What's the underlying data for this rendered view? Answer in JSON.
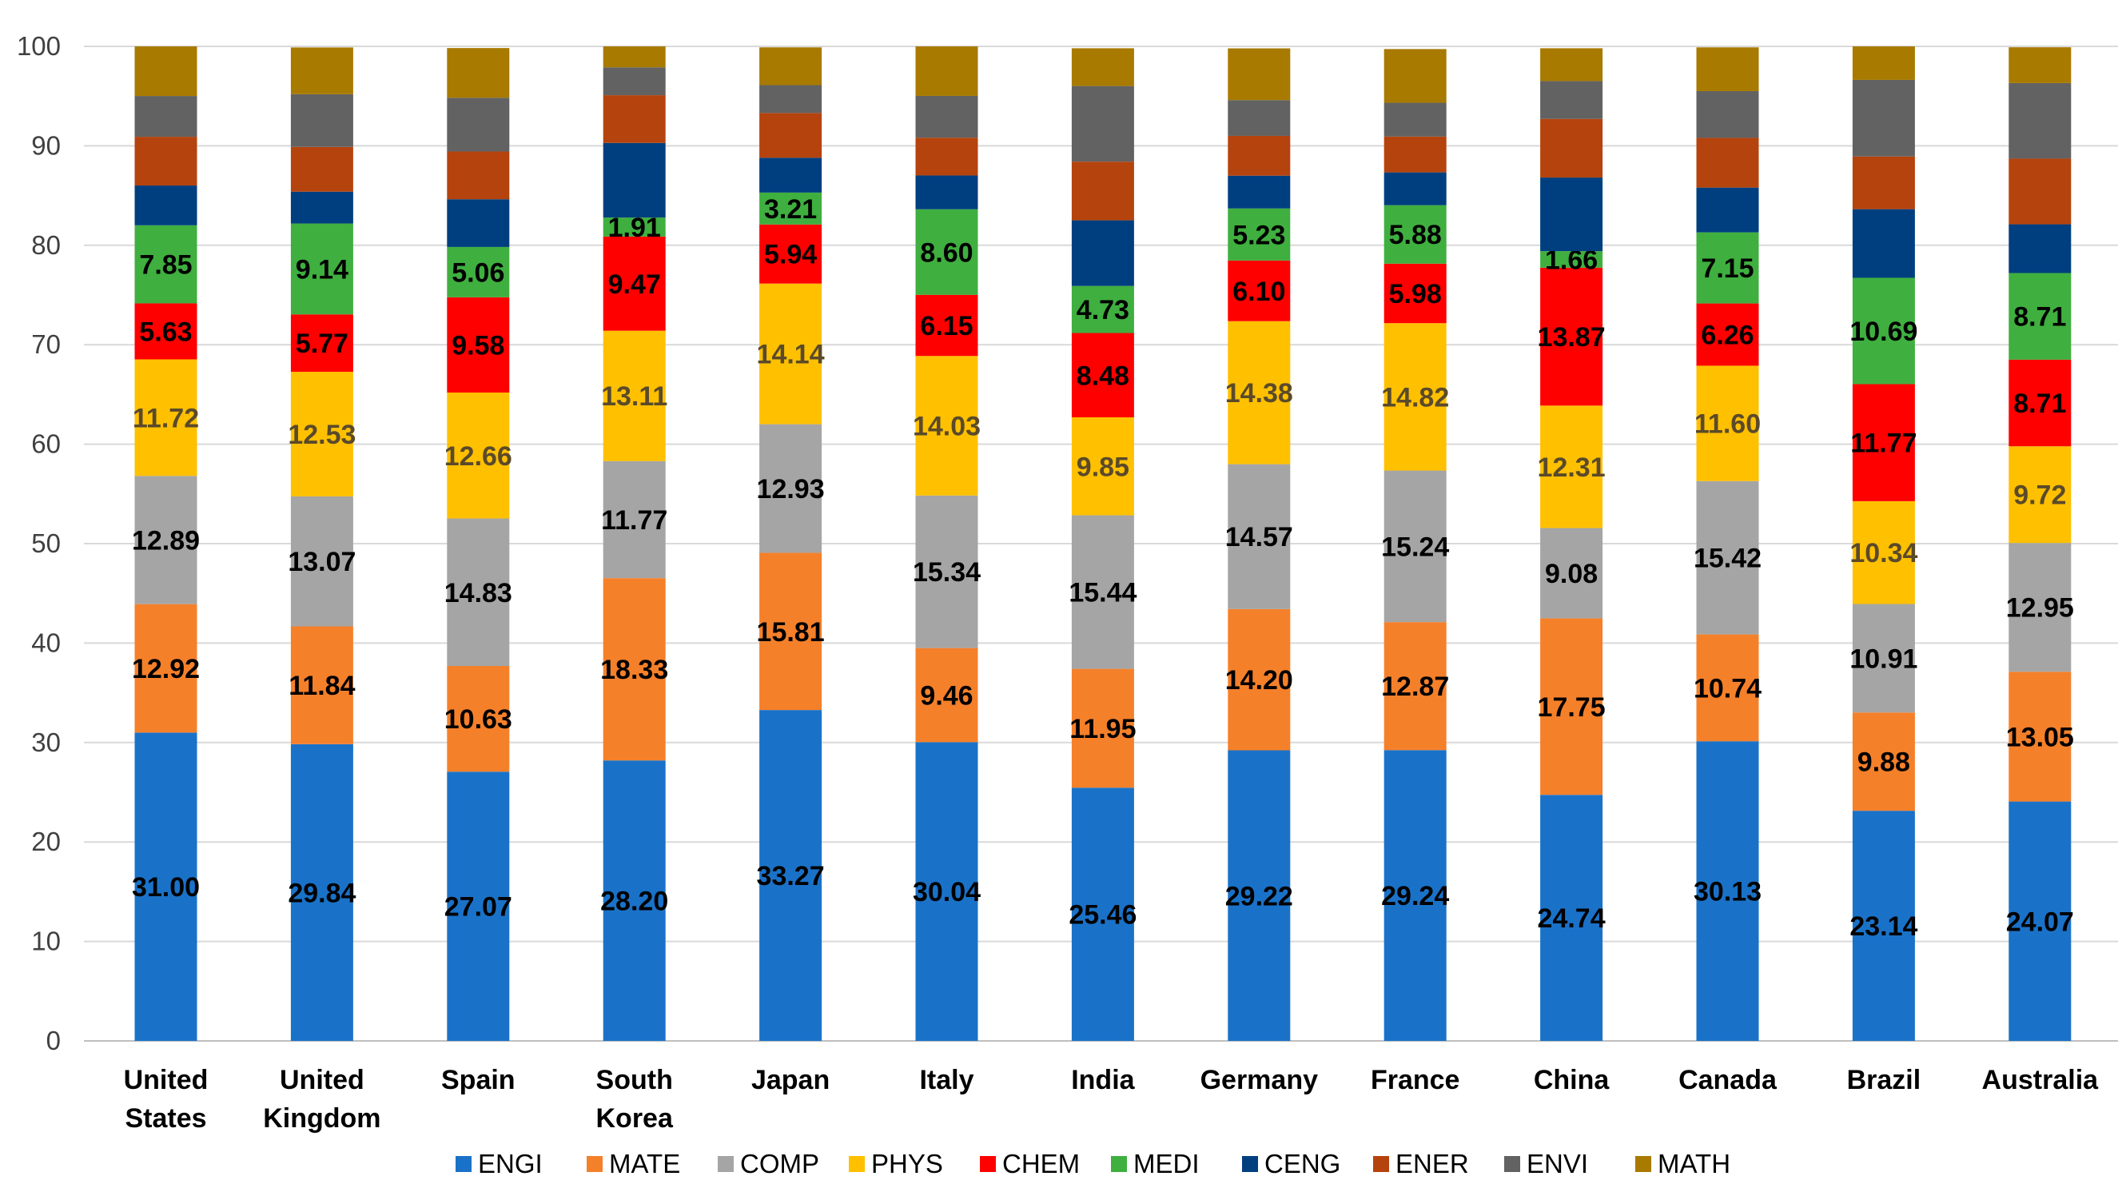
{
  "chart_data": {
    "type": "bar",
    "stacked": true,
    "title": "",
    "xlabel": "",
    "ylabel": "",
    "ylim": [
      0,
      100
    ],
    "yticks": [
      "0",
      "10",
      "20",
      "30",
      "40",
      "50",
      "60",
      "70",
      "80",
      "90",
      "100"
    ],
    "grid": true,
    "legend_position": "bottom",
    "categories": [
      [
        "United",
        "States"
      ],
      [
        "United",
        "Kingdom"
      ],
      [
        "Spain"
      ],
      [
        "South",
        "Korea"
      ],
      [
        "Japan"
      ],
      [
        "Italy"
      ],
      [
        "India"
      ],
      [
        "Germany"
      ],
      [
        "France"
      ],
      [
        "China"
      ],
      [
        "Canada"
      ],
      [
        "Brazil"
      ],
      [
        "Australia"
      ]
    ],
    "series": [
      {
        "name": "ENGI",
        "color": "#1A72C8",
        "label_color": "#000000",
        "labeled": true,
        "values": [
          31.0,
          29.84,
          27.07,
          28.2,
          33.27,
          30.04,
          25.46,
          29.22,
          29.24,
          24.74,
          30.13,
          23.14,
          24.07
        ],
        "labels": [
          "31.00",
          "29.84",
          "27.07",
          "28.20",
          "33.27",
          "30.04",
          "25.46",
          "29.22",
          "29.24",
          "24.74",
          "30.13",
          "23.14",
          "24.07"
        ]
      },
      {
        "name": "MATE",
        "color": "#F5802A",
        "label_color": "#000000",
        "labeled": true,
        "values": [
          12.92,
          11.84,
          10.63,
          18.33,
          15.81,
          9.46,
          11.95,
          14.2,
          12.87,
          17.75,
          10.74,
          9.88,
          13.05
        ],
        "labels": [
          "12.92",
          "11.84",
          "10.63",
          "18.33",
          "15.81",
          "9.46",
          "11.95",
          "14.20",
          "12.87",
          "17.75",
          "10.74",
          "9.88",
          "13.05"
        ]
      },
      {
        "name": "COMP",
        "color": "#A5A5A5",
        "label_color": "#000000",
        "labeled": true,
        "values": [
          12.89,
          13.07,
          14.83,
          11.77,
          12.93,
          15.34,
          15.44,
          14.57,
          15.24,
          9.08,
          15.42,
          10.91,
          12.95
        ],
        "labels": [
          "12.89",
          "13.07",
          "14.83",
          "11.77",
          "12.93",
          "15.34",
          "15.44",
          "14.57",
          "15.24",
          "9.08",
          "15.42",
          "10.91",
          "12.95"
        ]
      },
      {
        "name": "PHYS",
        "color": "#FFC000",
        "label_color": "#5A4A2A",
        "labeled": true,
        "values": [
          11.72,
          12.53,
          12.66,
          13.11,
          14.14,
          14.03,
          9.85,
          14.38,
          14.82,
          12.31,
          11.6,
          10.34,
          9.72
        ],
        "labels": [
          "11.72",
          "12.53",
          "12.66",
          "13.11",
          "14.14",
          "14.03",
          "9.85",
          "14.38",
          "14.82",
          "12.31",
          "11.60",
          "10.34",
          "9.72"
        ]
      },
      {
        "name": "CHEM",
        "color": "#FF0000",
        "label_color": "#000000",
        "labeled": true,
        "values": [
          5.63,
          5.77,
          9.58,
          9.47,
          5.94,
          6.15,
          8.48,
          6.1,
          5.98,
          13.87,
          6.26,
          11.77,
          8.71
        ],
        "labels": [
          "5.63",
          "5.77",
          "9.58",
          "9.47",
          "5.94",
          "6.15",
          "8.48",
          "6.10",
          "5.98",
          "13.87",
          "6.26",
          "11.77",
          "8.71"
        ]
      },
      {
        "name": "MEDI",
        "color": "#3FAF3F",
        "label_color": "#000000",
        "labeled": true,
        "values": [
          7.85,
          9.14,
          5.06,
          1.91,
          3.21,
          8.6,
          4.73,
          5.23,
          5.88,
          1.66,
          7.15,
          10.69,
          8.71
        ],
        "labels": [
          "7.85",
          "9.14",
          "5.06",
          "1.91",
          "3.21",
          "8.60",
          "4.73",
          "5.23",
          "5.88",
          "1.66",
          "7.15",
          "10.69",
          "8.71"
        ]
      },
      {
        "name": "CENG",
        "color": "#003F7F",
        "labeled": false,
        "values": [
          4.0,
          3.2,
          4.8,
          7.5,
          3.5,
          3.4,
          6.6,
          3.3,
          3.3,
          7.4,
          4.5,
          6.9,
          4.9
        ]
      },
      {
        "name": "ENER",
        "color": "#B5430D",
        "labeled": false,
        "values": [
          4.9,
          4.5,
          4.8,
          4.8,
          4.5,
          3.8,
          5.9,
          4.0,
          3.6,
          5.9,
          5.0,
          5.3,
          6.6
        ]
      },
      {
        "name": "ENVI",
        "color": "#626262",
        "labeled": false,
        "values": [
          4.1,
          5.3,
          5.4,
          2.8,
          2.8,
          4.2,
          7.6,
          3.6,
          3.4,
          3.8,
          4.7,
          7.7,
          7.6
        ]
      },
      {
        "name": "MATH",
        "color": "#A87A00",
        "labeled": false,
        "values": [
          5.0,
          4.7,
          5.0,
          3.8,
          3.8,
          5.1,
          3.8,
          5.2,
          5.4,
          3.3,
          4.4,
          3.4,
          3.6
        ]
      }
    ]
  }
}
